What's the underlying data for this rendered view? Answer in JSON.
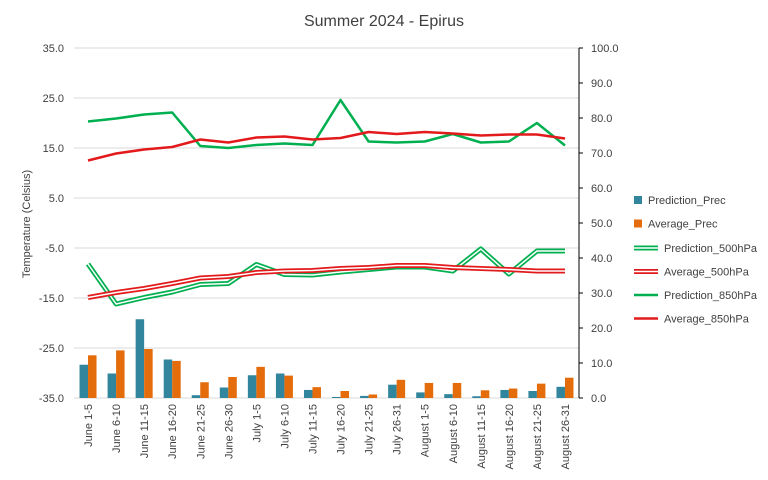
{
  "chart_data": {
    "type": "bar",
    "title": "Summer 2024 - Epirus",
    "ylabel": "Temperature (Celsius)",
    "y2label": "",
    "ylim": [
      -35,
      35
    ],
    "y2lim": [
      0,
      100
    ],
    "yticks": [
      "35.0",
      "25.0",
      "15.0",
      "5.0",
      "-5.0",
      "-15.0",
      "-25.0",
      "-35.0"
    ],
    "y2ticks": [
      "100.0",
      "90.0",
      "80.0",
      "70.0",
      "60.0",
      "50.0",
      "40.0",
      "30.0",
      "20.0",
      "10.0",
      "0.0"
    ],
    "grid": true,
    "legend_position": "right",
    "categories": [
      "June 1-5",
      "June 6-10",
      "June 11-15",
      "June 16-20",
      "June 21-25",
      "June 26-30",
      "July 1-5",
      "July 6-10",
      "July 11-15",
      "July 16-20",
      "July 21-25",
      "July 26-31",
      "August 1-5",
      "August 6-10",
      "August 11-15",
      "August 16-20",
      "August 21-25",
      "August 26-31"
    ],
    "bar_series": [
      {
        "name": "Prediction_Prec",
        "color": "#31859C",
        "axis": "right",
        "values": [
          9.5,
          7,
          22.5,
          11,
          0.8,
          3,
          6.5,
          7,
          2.3,
          0.3,
          0.6,
          3.8,
          1.6,
          1.1,
          0.5,
          2.3,
          2,
          3.2
        ]
      },
      {
        "name": "Average_Prec",
        "color": "#E46C0A",
        "axis": "right",
        "values": [
          12.2,
          13.6,
          14,
          10.6,
          4.5,
          6,
          8.9,
          6.4,
          3.1,
          2,
          1,
          5.2,
          4.3,
          4.3,
          2.2,
          2.7,
          4.1,
          5.8
        ]
      }
    ],
    "line_series": [
      {
        "name": "Prediction_500hPa",
        "color": "#00B050",
        "style": "double",
        "axis": "left",
        "values": [
          -8.2,
          -16.2,
          -14.9,
          -13.8,
          -12.3,
          -12.1,
          -8.3,
          -10.3,
          -10.4,
          -9.8,
          -9.3,
          -8.8,
          -8.8,
          -9.6,
          -5.2,
          -10.2,
          -5.6,
          -5.6
        ]
      },
      {
        "name": "Average_500hPa",
        "color": "#E31A1C",
        "style": "double",
        "axis": "left",
        "values": [
          -14.9,
          -13.9,
          -13.1,
          -12.1,
          -11,
          -10.7,
          -9.9,
          -9.6,
          -9.5,
          -9.1,
          -8.9,
          -8.5,
          -8.5,
          -8.9,
          -9.1,
          -9.3,
          -9.6,
          -9.6
        ]
      },
      {
        "name": "Prediction_850hPa",
        "color": "#00B050",
        "style": "solid",
        "axis": "left",
        "values": [
          20.3,
          20.9,
          21.7,
          22.1,
          15.4,
          15,
          15.6,
          15.9,
          15.6,
          24.6,
          16.3,
          16.1,
          16.3,
          17.8,
          16.1,
          16.3,
          20,
          15.5
        ]
      },
      {
        "name": "Average_850hPa",
        "color": "#E31A1C",
        "style": "solid",
        "axis": "left",
        "values": [
          12.5,
          13.9,
          14.7,
          15.2,
          16.7,
          16.1,
          17.1,
          17.3,
          16.7,
          17,
          18.2,
          17.8,
          18.2,
          17.9,
          17.5,
          17.7,
          17.7,
          16.9
        ]
      }
    ]
  }
}
